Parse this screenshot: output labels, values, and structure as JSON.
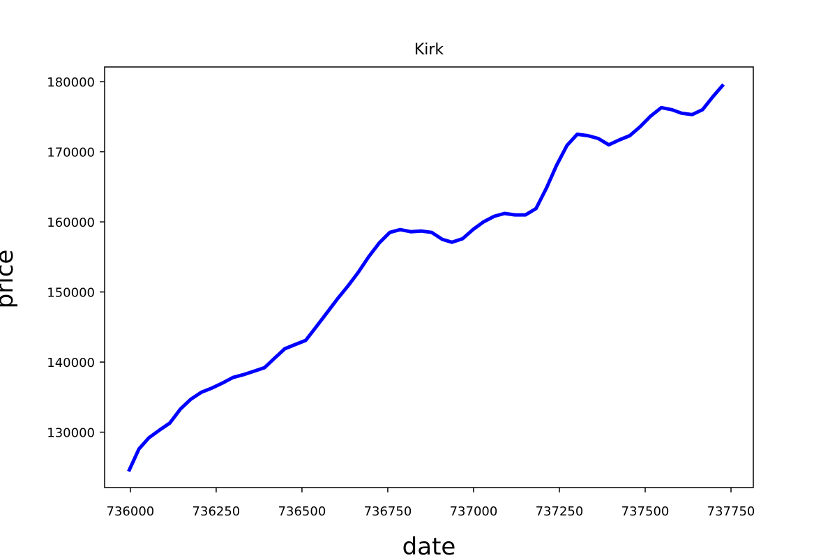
{
  "chart_data": {
    "type": "line",
    "title": "Kirk",
    "xlabel": "date",
    "ylabel": "price",
    "xlim": [
      735925,
      737815
    ],
    "ylim": [
      122100,
      182100
    ],
    "xticks": [
      736000,
      736250,
      736500,
      736750,
      737000,
      737250,
      737500,
      737750
    ],
    "xtick_labels": [
      "736000",
      "736250",
      "736500",
      "736750",
      "737000",
      "737250",
      "737500",
      "737750"
    ],
    "yticks": [
      130000,
      140000,
      150000,
      160000,
      170000,
      180000
    ],
    "ytick_labels": [
      "130000",
      "140000",
      "150000",
      "160000",
      "170000",
      "180000"
    ],
    "grid": false,
    "line_color": "#0000ff",
    "series": [
      {
        "x": [
          735995,
          736025,
          736054,
          736085,
          736115,
          736146,
          736176,
          736207,
          736238,
          736268,
          736299,
          736329,
          736360,
          736391,
          736419,
          736450,
          736480,
          736511,
          736541,
          736572,
          736603,
          736633,
          736664,
          736694,
          736725,
          736756,
          736786,
          736817,
          736847,
          736878,
          736909,
          736937,
          736968,
          736998,
          737029,
          737060,
          737090,
          737121,
          737151,
          737182,
          737213,
          737241,
          737272,
          737302,
          737333,
          737363,
          737394,
          737425,
          737455,
          737486,
          737516,
          737547,
          737578,
          737606,
          737637,
          737667,
          737698,
          737728
        ],
        "y": [
          124400,
          127600,
          129200,
          130300,
          131300,
          133300,
          134700,
          135700,
          136300,
          137000,
          137800,
          138200,
          138700,
          139200,
          140500,
          141900,
          142500,
          143100,
          145000,
          147000,
          149000,
          150800,
          152800,
          155000,
          157000,
          158500,
          158900,
          158600,
          158700,
          158500,
          157500,
          157100,
          157600,
          158900,
          160000,
          160800,
          161200,
          161000,
          161000,
          161900,
          164900,
          168000,
          170900,
          172500,
          172300,
          171900,
          171000,
          171700,
          172300,
          173600,
          175100,
          176300,
          176000,
          175500,
          175300,
          176000,
          177900,
          179600
        ]
      }
    ]
  }
}
